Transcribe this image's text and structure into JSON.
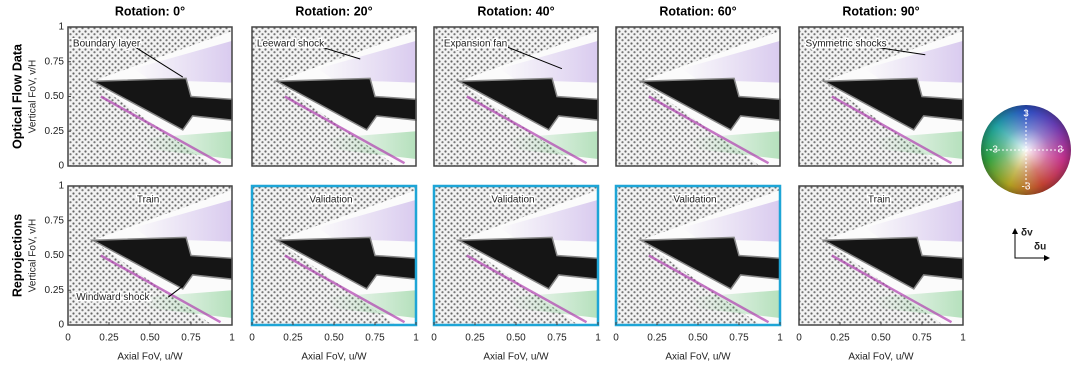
{
  "figure": {
    "columns": [
      "Rotation: 0°",
      "Rotation: 20°",
      "Rotation: 40°",
      "Rotation: 60°",
      "Rotation: 90°"
    ],
    "rows": [
      {
        "label": "Optical Flow Data",
        "y_label": "Vertical FoV, v/H",
        "panels": [
          {
            "annotation": "Boundary layer"
          },
          {
            "annotation": "Leeward shock"
          },
          {
            "annotation": "Expansion fan"
          },
          {},
          {
            "annotation": "Symmetric shocks"
          }
        ]
      },
      {
        "label": "Reprojections",
        "y_label": "Vertical FoV, v/H",
        "panels": [
          {
            "annotation": "Train",
            "extra_annotation": "Windward shock"
          },
          {
            "annotation": "Validation",
            "highlighted": true
          },
          {
            "annotation": "Validation",
            "highlighted": true
          },
          {
            "annotation": "Validation",
            "highlighted": true
          },
          {
            "annotation": "Train"
          }
        ]
      }
    ],
    "x_label": "Axial FoV, u/W",
    "xlim": [
      0,
      1
    ],
    "xticks": [
      0,
      0.25,
      {
        "value": 0.5,
        "label": "0.50"
      },
      0.75,
      1
    ],
    "ylim": [
      0,
      1
    ],
    "yticks": [
      0,
      0.25,
      {
        "value": 0.5,
        "label": "0.50"
      },
      0.75,
      1
    ],
    "colorwheel": {
      "top": "3",
      "left": "-3",
      "right": "3",
      "bottom": "-3"
    },
    "axes_icon": {
      "v": "δv",
      "u": "δu"
    }
  }
}
